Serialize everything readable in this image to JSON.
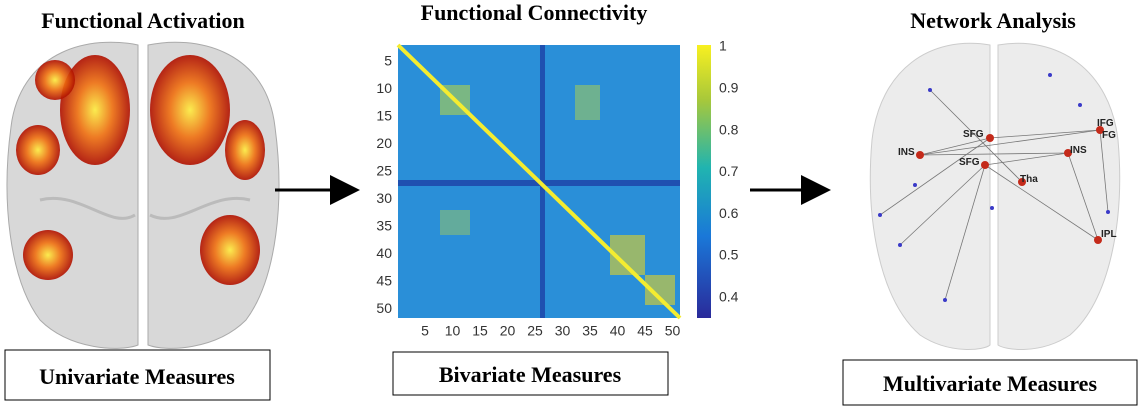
{
  "panels": [
    {
      "title": "Functional Activation",
      "caption": "Univariate Measures"
    },
    {
      "title": "Functional Connectivity",
      "caption": "Bivariate Measures",
      "matrix": {
        "y_ticks": [
          5,
          10,
          15,
          20,
          25,
          30,
          35,
          40,
          45,
          50
        ],
        "x_ticks": [
          5,
          10,
          15,
          20,
          25,
          30,
          35,
          40,
          45,
          50
        ],
        "colorbar_ticks": [
          1,
          0.9,
          0.8,
          0.7,
          0.6,
          0.5,
          0.4
        ]
      }
    },
    {
      "title": "Network Analysis",
      "caption": "Multivariate Measures",
      "nodes": [
        "SFG",
        "SFG",
        "INS",
        "INS",
        "IFG",
        "FG",
        "Tha",
        "IPL"
      ]
    }
  ]
}
